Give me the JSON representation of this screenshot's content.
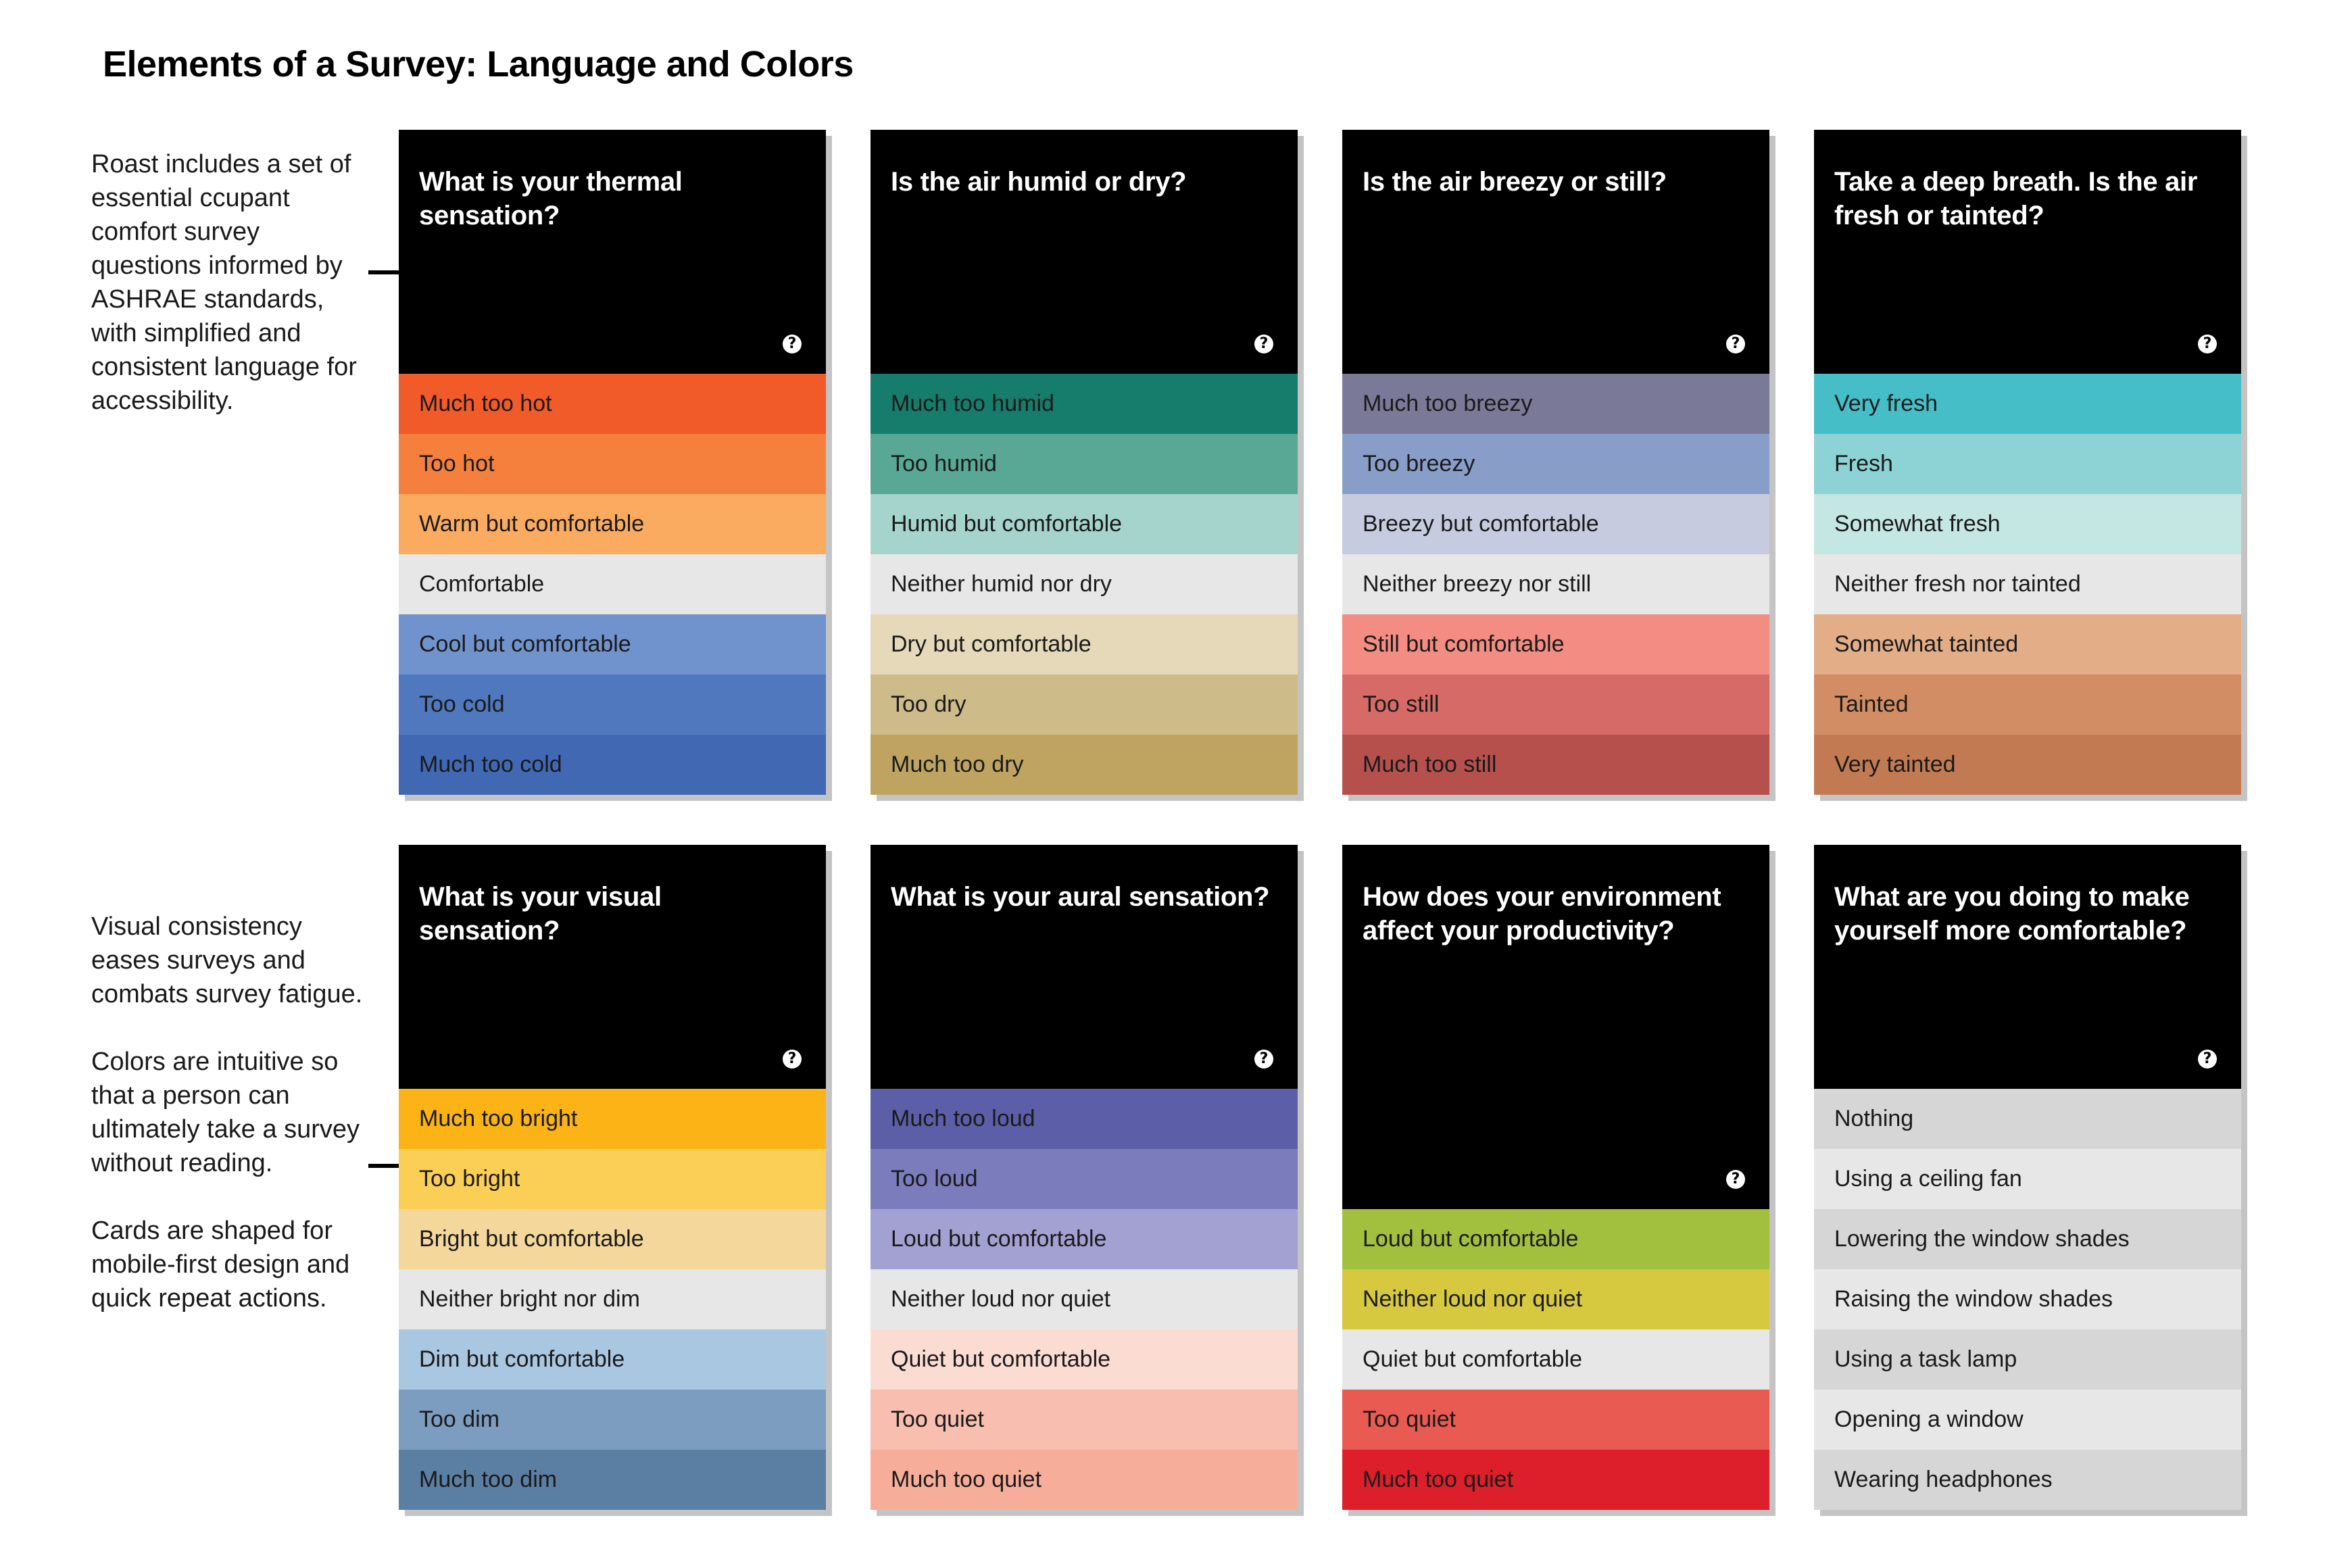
{
  "title": "Elements of a Survey: Language and Colors",
  "notes": {
    "top": [
      "Roast includes a set of essential ccupant comfort survey questions informed by ASHRAE standards, with simplified and consistent language for accessibility."
    ],
    "bottom": [
      "Visual consistency eases surveys and combats survey fatigue.",
      "Colors are intuitive so that a person can ultimately take a survey without reading.",
      "Cards are shaped for mobile-first design and quick repeat actions."
    ]
  },
  "help_glyph": "?",
  "cards": [
    {
      "question": "What is your thermal sensation?",
      "options": [
        {
          "label": "Much too hot",
          "color": "#f15a29"
        },
        {
          "label": "Too hot",
          "color": "#f5803e"
        },
        {
          "label": "Warm but comfortable",
          "color": "#fbab60"
        },
        {
          "label": "Comfortable",
          "color": "#e6e7e6"
        },
        {
          "label": "Cool but comfortable",
          "color": "#7093cd"
        },
        {
          "label": "Too cold",
          "color": "#5078bf"
        },
        {
          "label": "Much too cold",
          "color": "#4068b3"
        }
      ]
    },
    {
      "question": "Is the air humid or dry?",
      "options": [
        {
          "label": "Much too humid",
          "color": "#167c6b"
        },
        {
          "label": "Too humid",
          "color": "#58a895"
        },
        {
          "label": "Humid but comfortable",
          "color": "#a5d4cd"
        },
        {
          "label": "Neither humid nor dry",
          "color": "#e6e7e6"
        },
        {
          "label": "Dry but comfortable",
          "color": "#e5d9b9"
        },
        {
          "label": "Too dry",
          "color": "#cdbb8a"
        },
        {
          "label": "Much too dry",
          "color": "#bfa461"
        }
      ]
    },
    {
      "question": "Is the air breezy or still?",
      "options": [
        {
          "label": "Much too breezy",
          "color": "#7a7a98"
        },
        {
          "label": "Too breezy",
          "color": "#889ec8"
        },
        {
          "label": "Breezy but comfortable",
          "color": "#c6cbe0"
        },
        {
          "label": "Neither breezy nor still",
          "color": "#e6e7e6"
        },
        {
          "label": "Still but comfortable",
          "color": "#f38d83"
        },
        {
          "label": "Too still",
          "color": "#d56a66"
        },
        {
          "label": "Much too still",
          "color": "#b5504d"
        }
      ]
    },
    {
      "question": "Take a deep breath. Is the air fresh or tainted?",
      "options": [
        {
          "label": "Very fresh",
          "color": "#46bec8"
        },
        {
          "label": "Fresh",
          "color": "#8dd2d5"
        },
        {
          "label": "Somewhat fresh",
          "color": "#c4e7e4"
        },
        {
          "label": "Neither fresh nor tainted",
          "color": "#e6e7e6"
        },
        {
          "label": "Somewhat tainted",
          "color": "#e3ad88"
        },
        {
          "label": "Tainted",
          "color": "#d38d64"
        },
        {
          "label": "Very tainted",
          "color": "#c27a53"
        }
      ]
    },
    {
      "question": "What is your visual sensation?",
      "options": [
        {
          "label": "Much too bright",
          "color": "#fcb315"
        },
        {
          "label": "Too bright",
          "color": "#fbcf56"
        },
        {
          "label": "Bright but comfortable",
          "color": "#f4d89b"
        },
        {
          "label": "Neither bright nor dim",
          "color": "#e6e7e6"
        },
        {
          "label": "Dim but comfortable",
          "color": "#a9c7e0"
        },
        {
          "label": "Too dim",
          "color": "#7c9cc0"
        },
        {
          "label": "Much too dim",
          "color": "#5b7ea3"
        }
      ]
    },
    {
      "question": "What is your aural sensation?",
      "options": [
        {
          "label": "Much too loud",
          "color": "#5c5ea8"
        },
        {
          "label": "Too loud",
          "color": "#7b7cbb"
        },
        {
          "label": "Loud but comfortable",
          "color": "#a3a0d2"
        },
        {
          "label": "Neither loud nor quiet",
          "color": "#e6e7e6"
        },
        {
          "label": "Quiet but comfortable",
          "color": "#fbdcd2"
        },
        {
          "label": "Too quiet",
          "color": "#f8beaf"
        },
        {
          "label": "Much too quiet",
          "color": "#f6ae9a"
        }
      ]
    },
    {
      "question": "How does your environment affect your productivity?",
      "options": [
        {
          "label": "Loud but comfortable",
          "color": "#a2c03e"
        },
        {
          "label": "Neither loud nor quiet",
          "color": "#d6c940"
        },
        {
          "label": "Quiet but comfortable",
          "color": "#e6e7e6"
        },
        {
          "label": "Too quiet",
          "color": "#e95a53"
        },
        {
          "label": "Much too quiet",
          "color": "#dc1f2b"
        }
      ]
    },
    {
      "question": "What are you doing to make yourself more comfortable?",
      "options": [
        {
          "label": "Nothing",
          "color": "#d6d6d6"
        },
        {
          "label": "Using a ceiling fan",
          "color": "#e6e7e6"
        },
        {
          "label": "Lowering the window shades",
          "color": "#d6d6d6"
        },
        {
          "label": "Raising the window shades",
          "color": "#e6e7e6"
        },
        {
          "label": "Using a task lamp",
          "color": "#d6d6d6"
        },
        {
          "label": "Opening a window",
          "color": "#e6e7e6"
        },
        {
          "label": "Wearing headphones",
          "color": "#d6d6d6"
        }
      ]
    }
  ]
}
